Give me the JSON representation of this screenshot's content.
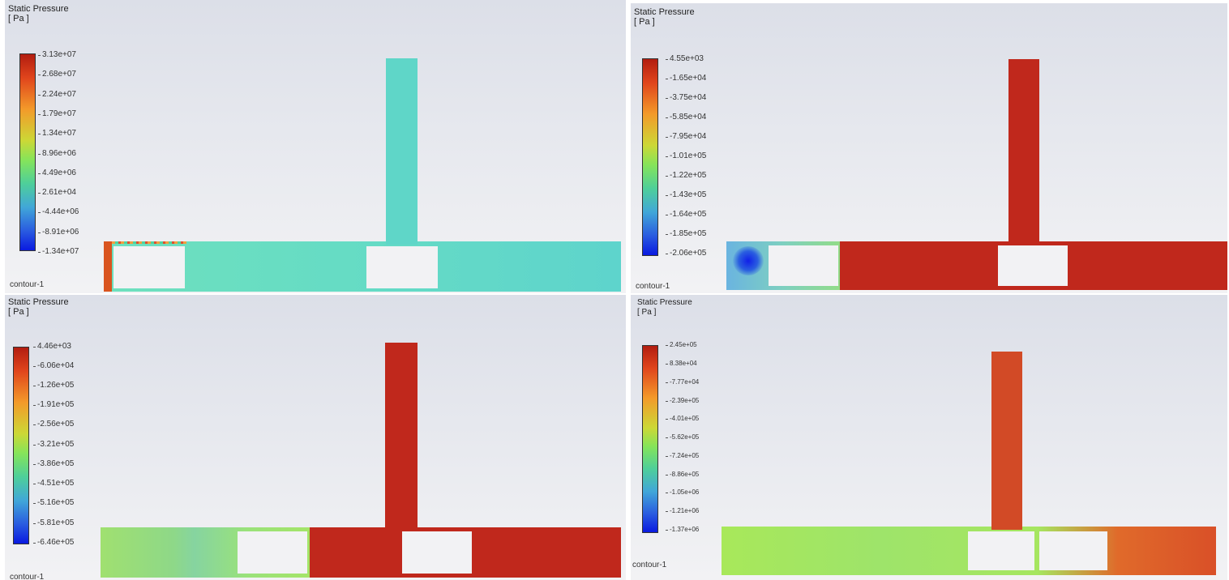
{
  "panels": [
    {
      "id": "top-left",
      "title": "Static Pressure",
      "unit": "[ Pa ]",
      "footer": "contour-1",
      "ticks": [
        "3.13e+07",
        "2.68e+07",
        "2.24e+07",
        "1.79e+07",
        "1.34e+07",
        "8.96e+06",
        "4.49e+06",
        "2.61e+04",
        "-4.44e+06",
        "-8.91e+06",
        "-1.34e+07"
      ],
      "colors": {
        "vertical_pipe": "#5fd6c8",
        "horizontal_pipe": "#64dcc4",
        "inlet_strip": "#d9541f"
      }
    },
    {
      "id": "top-right",
      "title": "Static Pressure",
      "unit": "[ Pa ]",
      "footer": "contour-1",
      "ticks": [
        "4.55e+03",
        "-1.65e+04",
        "-3.75e+04",
        "-5.85e+04",
        "-7.95e+04",
        "-1.01e+05",
        "-1.22e+05",
        "-1.43e+05",
        "-1.64e+05",
        "-1.85e+05",
        "-2.06e+05"
      ],
      "colors": {
        "vertical_pipe": "#c0281c",
        "horizontal_pipe": "#c0281c",
        "low_zone": "#6fc4d8",
        "vortex": "#1530e0"
      }
    },
    {
      "id": "bottom-left",
      "title": "Static Pressure",
      "unit": "[ Pa ]",
      "footer": "contour-1",
      "ticks": [
        "4.46e+03",
        "-6.06e+04",
        "-1.26e+05",
        "-1.91e+05",
        "-2.56e+05",
        "-3.21e+05",
        "-3.86e+05",
        "-4.51e+05",
        "-5.16e+05",
        "-5.81e+05",
        "-6.46e+05"
      ],
      "colors": {
        "vertical_pipe": "#c0281c",
        "horizontal_pipe": "#c0281c",
        "low_zone": "#96e070"
      }
    },
    {
      "id": "bottom-right",
      "title": "Static Pressure",
      "unit": "[ Pa ]",
      "footer": "contour-1",
      "ticks": [
        "2.45e+05",
        "8.38e+04",
        "-7.77e+04",
        "-2.39e+05",
        "-4.01e+05",
        "-5.62e+05",
        "-7.24e+05",
        "-8.86e+05",
        "-1.05e+06",
        "-1.21e+06",
        "-1.37e+06"
      ],
      "colors": {
        "vertical_pipe": "#d24a26",
        "horizontal_pipe": "#a2e860",
        "outlet_zone": "#d95028"
      }
    }
  ]
}
